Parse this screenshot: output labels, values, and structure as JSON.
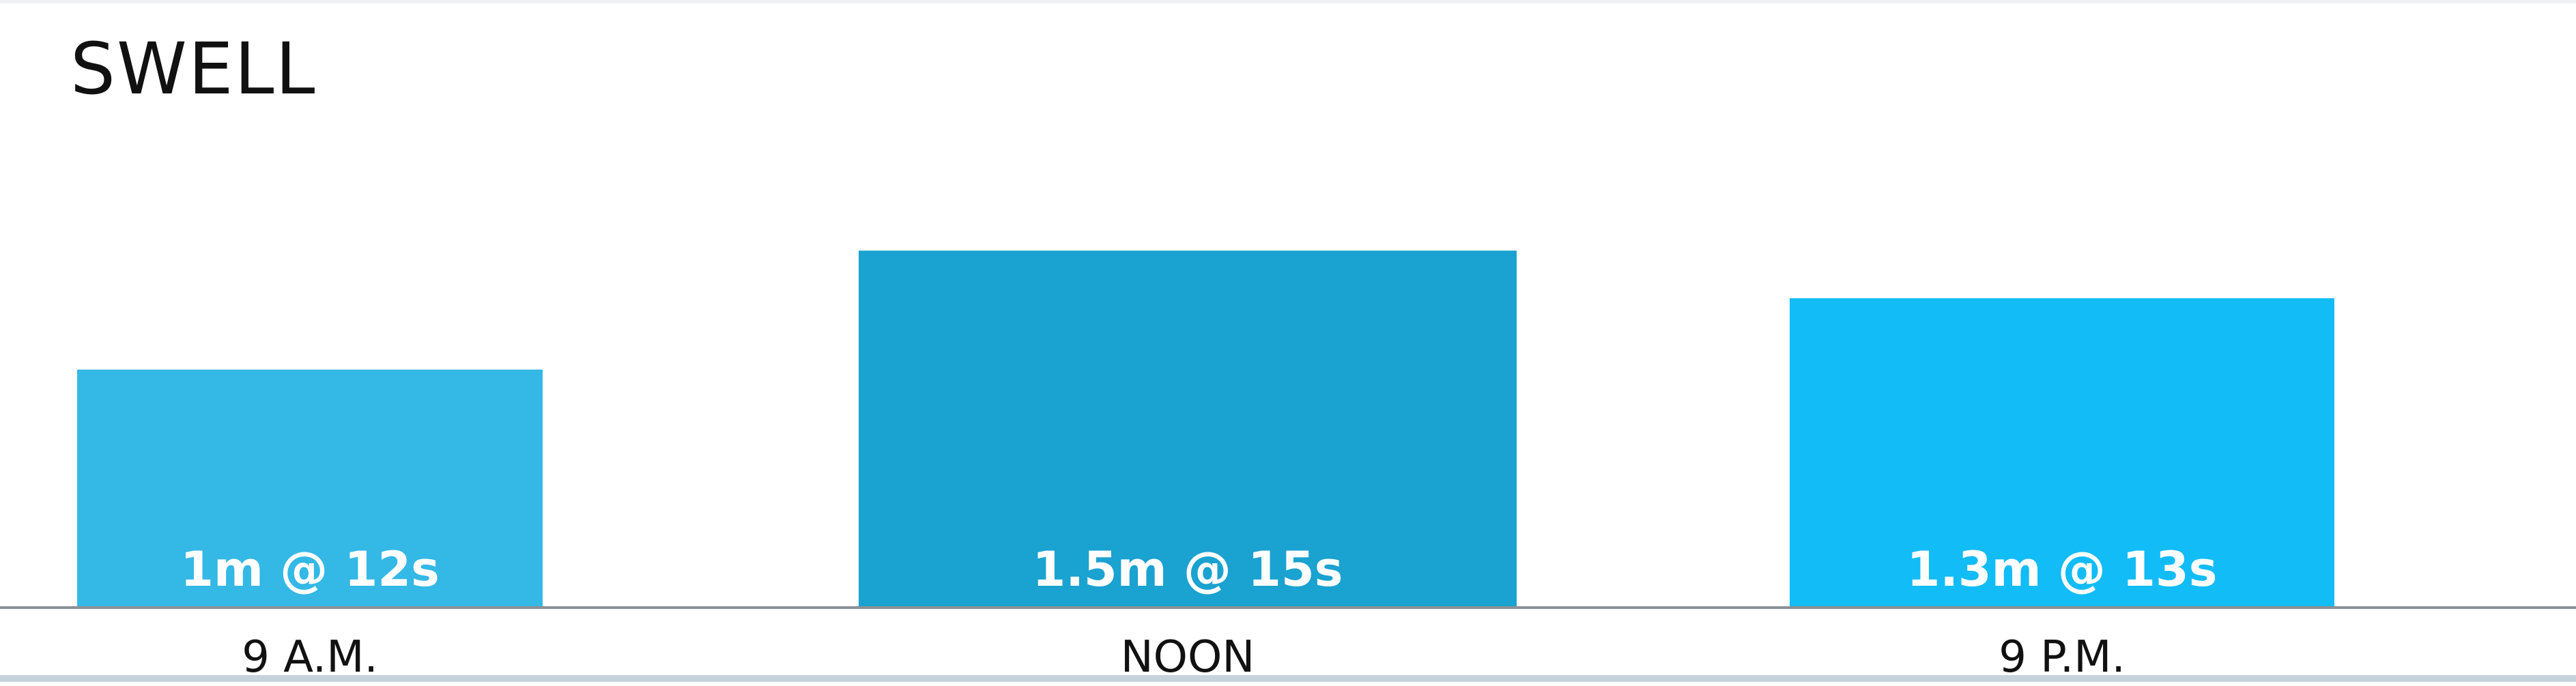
{
  "chart_data": {
    "type": "bar",
    "title": "SWELL",
    "categories": [
      "9 A.M.",
      "NOON",
      "9 P.M."
    ],
    "values": [
      1.0,
      1.5,
      1.3
    ],
    "labels": [
      "1m @ 12s",
      "1.5m @ 15s",
      "1.3m @ 13s"
    ],
    "colors": [
      "#34b8e6",
      "#1aa2d0",
      "#12bcf6"
    ],
    "ylim": [
      0,
      2.5
    ],
    "grid": false,
    "legend": "none"
  }
}
